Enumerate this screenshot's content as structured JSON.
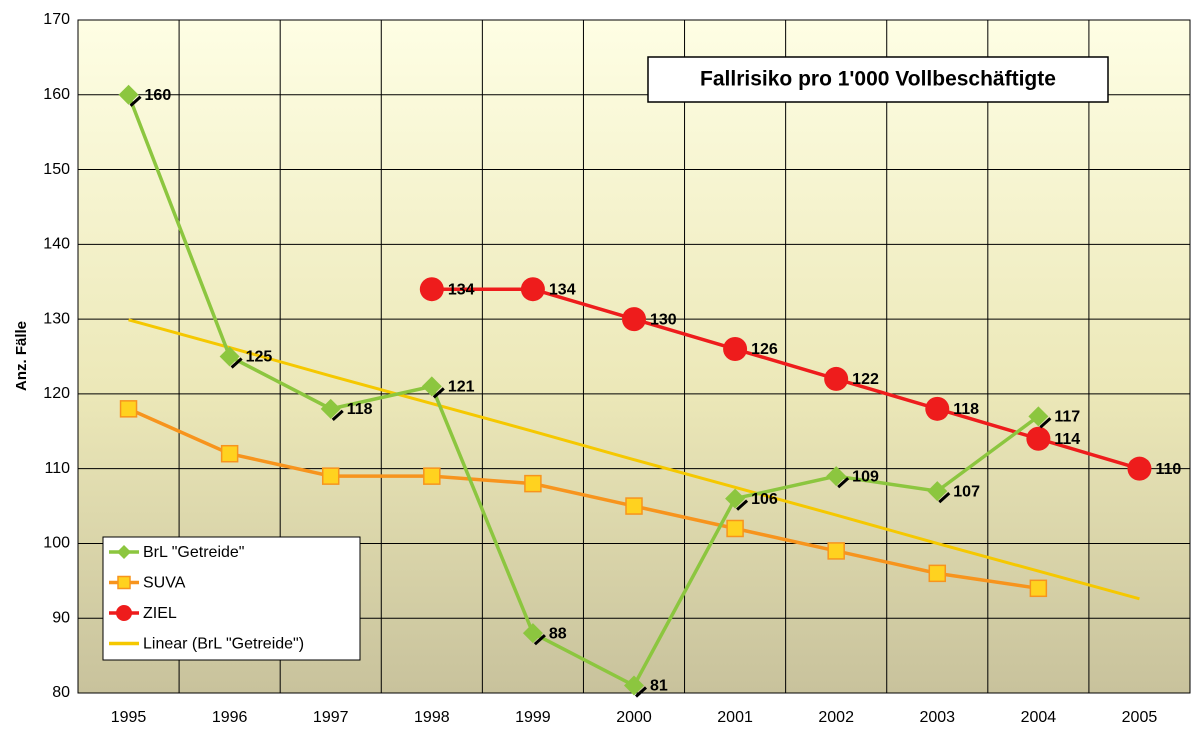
{
  "chart_data": {
    "type": "line",
    "title": "Fallrisiko pro 1'000 Vollbeschäftigte",
    "y_label": "Anz. Fälle",
    "categories": [
      "1995",
      "1996",
      "1997",
      "1998",
      "1999",
      "2000",
      "2001",
      "2002",
      "2003",
      "2004",
      "2005"
    ],
    "series": [
      {
        "name": "BrL \"Getreide\"",
        "color": "#8cc63f",
        "marker": "diamond",
        "labels": true,
        "values": [
          160,
          125,
          118,
          121,
          88,
          81,
          106,
          109,
          107,
          117,
          null
        ]
      },
      {
        "name": "SUVA",
        "color": "#f7941d",
        "marker": "square",
        "labels": false,
        "values": [
          118,
          112,
          109,
          109,
          108,
          105,
          102,
          99,
          96,
          94,
          null
        ]
      },
      {
        "name": "ZIEL",
        "color": "#ee1c1c",
        "marker": "circle",
        "labels": true,
        "values": [
          null,
          null,
          null,
          134,
          134,
          130,
          126,
          122,
          118,
          114,
          110
        ]
      },
      {
        "name": "Linear (BrL \"Getreide\")",
        "color": "#f5c800",
        "marker": "none",
        "labels": false,
        "values": [
          129.9,
          126.2,
          122.4,
          118.7,
          115.0,
          111.2,
          107.5,
          103.8,
          100.0,
          96.3,
          92.6
        ]
      }
    ],
    "ylim": [
      80,
      170
    ],
    "yticks": [
      80,
      90,
      100,
      110,
      120,
      130,
      140,
      150,
      160,
      170
    ],
    "grid": true,
    "legend": "lower left"
  }
}
